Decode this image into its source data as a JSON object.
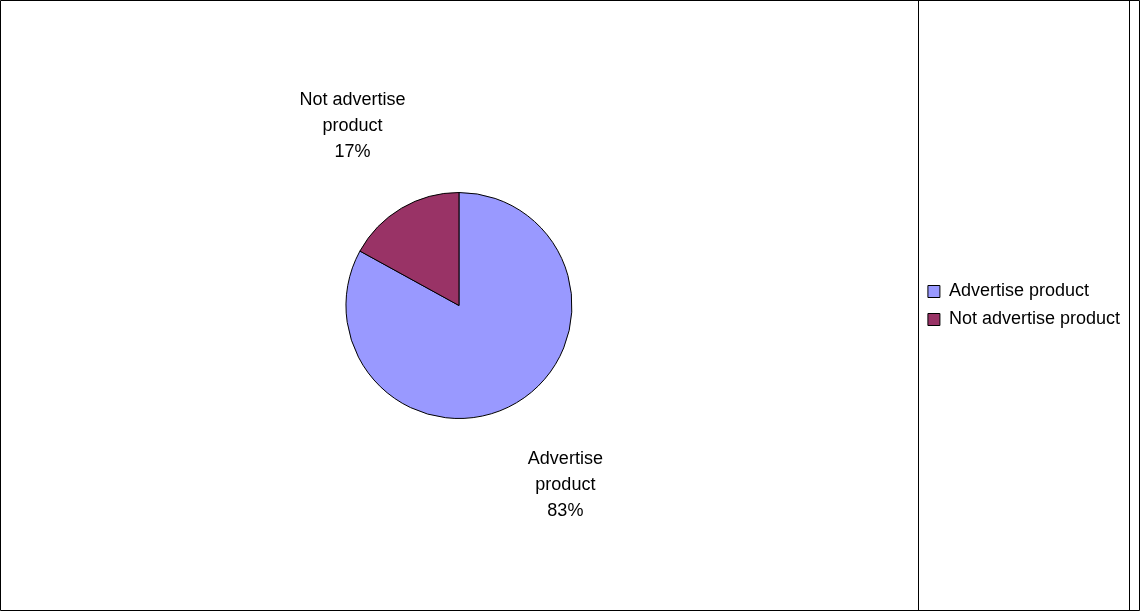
{
  "chart_data": {
    "type": "pie",
    "categories": [
      "Advertise product",
      "Not advertise product"
    ],
    "values": [
      83,
      17
    ],
    "colors": [
      "#9999ff",
      "#993366"
    ],
    "value_labels": [
      "83%",
      "17%"
    ],
    "legend": "right"
  }
}
